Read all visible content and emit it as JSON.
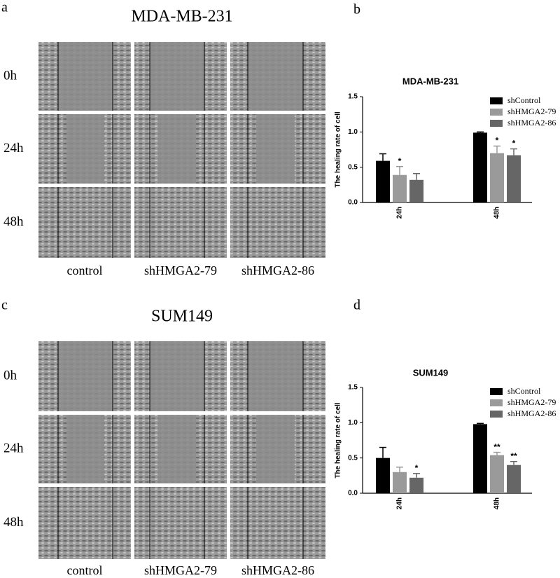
{
  "panels": [
    {
      "label": "a",
      "title": "MDA-MB-231",
      "rows": [
        "0h",
        "24h",
        "48h"
      ],
      "columns": [
        "control",
        "shHMGA2-79",
        "shHMGA2-86"
      ]
    },
    {
      "label": "c",
      "title": "SUM149",
      "rows": [
        "0h",
        "24h",
        "48h"
      ],
      "columns": [
        "control",
        "shHMGA2-79",
        "shHMGA2-86"
      ]
    }
  ],
  "chart_data": [
    {
      "type": "bar",
      "label": "b",
      "title": "MDA-MB-231",
      "ylabel": "The healing rate of cell",
      "categories": [
        "24h",
        "48h"
      ],
      "series": [
        {
          "name": "shControl",
          "color": "#000000",
          "values": [
            0.59,
            0.99
          ],
          "errors": [
            0.1,
            0.01
          ],
          "annotations": [
            null,
            null
          ]
        },
        {
          "name": "shHMGA2-79",
          "color": "#9a9a9a",
          "values": [
            0.39,
            0.7
          ],
          "errors": [
            0.12,
            0.1
          ],
          "annotations": [
            "*",
            "*"
          ]
        },
        {
          "name": "shHMGA2-86",
          "color": "#666666",
          "values": [
            0.32,
            0.67
          ],
          "errors": [
            0.09,
            0.09
          ],
          "annotations": [
            null,
            "*"
          ]
        }
      ],
      "ylim": [
        0,
        1.5
      ],
      "yticks": [
        {
          "value": 0,
          "label": "0.0"
        },
        0.5,
        {
          "value": 1,
          "label": "1.0"
        },
        1.5
      ],
      "legend": "upper right"
    },
    {
      "type": "bar",
      "label": "d",
      "title": "SUM149",
      "ylabel": "The healing rate of cell",
      "categories": [
        "24h",
        "48h"
      ],
      "series": [
        {
          "name": "shControl",
          "color": "#000000",
          "values": [
            0.5,
            0.98
          ],
          "errors": [
            0.15,
            0.01
          ],
          "annotations": [
            null,
            null
          ]
        },
        {
          "name": "shHMGA2-79",
          "color": "#9a9a9a",
          "values": [
            0.3,
            0.54
          ],
          "errors": [
            0.07,
            0.04
          ],
          "annotations": [
            null,
            "**"
          ]
        },
        {
          "name": "shHMGA2-86",
          "color": "#666666",
          "values": [
            0.22,
            0.4
          ],
          "errors": [
            0.06,
            0.05
          ],
          "annotations": [
            "*",
            "**"
          ]
        }
      ],
      "ylim": [
        0,
        1.5
      ],
      "yticks": [
        {
          "value": 0,
          "label": "0.0"
        },
        0.5,
        {
          "value": 1,
          "label": "1.0"
        },
        1.5
      ],
      "legend": "upper right"
    }
  ]
}
